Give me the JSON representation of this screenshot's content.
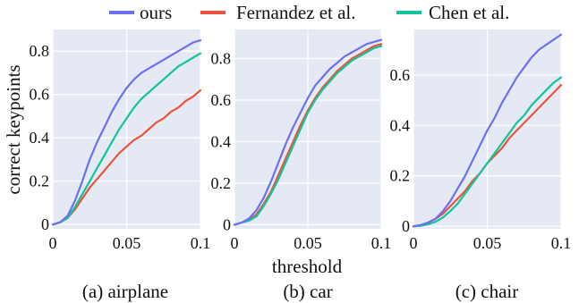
{
  "figure": {
    "ylabel": "correct keypoints",
    "xlabel": "threshold"
  },
  "legend": [
    {
      "name": "ours",
      "color": "#6b6ff0"
    },
    {
      "name": "Fernandez et al.",
      "color": "#e8553a"
    },
    {
      "name": "Chen et al.",
      "color": "#12c49a"
    }
  ],
  "chart_data": [
    {
      "type": "line",
      "title": "(a) airplane",
      "xlim": [
        0,
        0.1
      ],
      "ylim": [
        -0.02,
        0.9
      ],
      "xticks": [
        0,
        0.05,
        0.1
      ],
      "xtick_labels": [
        "0",
        "0.05",
        "0.1"
      ],
      "yticks": [
        0,
        0.2,
        0.4,
        0.6,
        0.8
      ],
      "ytick_labels": [
        "0",
        "0.2",
        "0.4",
        "0.6",
        "0.8"
      ],
      "grid": true,
      "x": [
        0,
        0.005,
        0.01,
        0.015,
        0.02,
        0.025,
        0.03,
        0.035,
        0.04,
        0.045,
        0.05,
        0.055,
        0.06,
        0.065,
        0.07,
        0.075,
        0.08,
        0.085,
        0.09,
        0.095,
        0.1
      ],
      "series": [
        {
          "name": "ours",
          "values": [
            0,
            0.01,
            0.04,
            0.11,
            0.2,
            0.3,
            0.38,
            0.45,
            0.52,
            0.58,
            0.63,
            0.67,
            0.7,
            0.72,
            0.74,
            0.76,
            0.78,
            0.8,
            0.82,
            0.84,
            0.85
          ]
        },
        {
          "name": "Fernandez et al.",
          "values": [
            0,
            0.01,
            0.03,
            0.07,
            0.12,
            0.17,
            0.21,
            0.25,
            0.29,
            0.33,
            0.36,
            0.39,
            0.41,
            0.44,
            0.47,
            0.49,
            0.52,
            0.54,
            0.57,
            0.59,
            0.62
          ]
        },
        {
          "name": "Chen et al.",
          "values": [
            0,
            0.01,
            0.03,
            0.08,
            0.14,
            0.2,
            0.26,
            0.32,
            0.38,
            0.44,
            0.49,
            0.54,
            0.58,
            0.61,
            0.64,
            0.67,
            0.7,
            0.73,
            0.75,
            0.77,
            0.79
          ]
        }
      ]
    },
    {
      "type": "line",
      "title": "(b) car",
      "xlim": [
        0,
        0.1
      ],
      "ylim": [
        -0.02,
        0.94
      ],
      "xticks": [
        0,
        0.05,
        0.1
      ],
      "xtick_labels": [
        "0",
        "0.05",
        "0.1"
      ],
      "yticks": [
        0,
        0.2,
        0.4,
        0.6,
        0.8
      ],
      "ytick_labels": [
        "0",
        "0.2",
        "0.4",
        "0.6",
        "0.8"
      ],
      "grid": true,
      "x": [
        0,
        0.005,
        0.01,
        0.015,
        0.02,
        0.025,
        0.03,
        0.035,
        0.04,
        0.045,
        0.05,
        0.055,
        0.06,
        0.065,
        0.07,
        0.075,
        0.08,
        0.085,
        0.09,
        0.095,
        0.1
      ],
      "series": [
        {
          "name": "ours",
          "values": [
            0,
            0.01,
            0.03,
            0.07,
            0.13,
            0.21,
            0.3,
            0.39,
            0.47,
            0.54,
            0.61,
            0.67,
            0.71,
            0.75,
            0.78,
            0.81,
            0.83,
            0.85,
            0.87,
            0.88,
            0.89
          ]
        },
        {
          "name": "Fernandez et al.",
          "values": [
            0,
            0.01,
            0.02,
            0.05,
            0.1,
            0.16,
            0.24,
            0.32,
            0.4,
            0.48,
            0.55,
            0.61,
            0.66,
            0.7,
            0.74,
            0.77,
            0.8,
            0.82,
            0.84,
            0.86,
            0.87
          ]
        },
        {
          "name": "Chen et al.",
          "values": [
            0,
            0.01,
            0.02,
            0.04,
            0.09,
            0.15,
            0.22,
            0.3,
            0.38,
            0.46,
            0.54,
            0.6,
            0.65,
            0.69,
            0.73,
            0.76,
            0.79,
            0.81,
            0.83,
            0.85,
            0.86
          ]
        }
      ]
    },
    {
      "type": "line",
      "title": "(c) chair",
      "xlim": [
        0,
        0.1
      ],
      "ylim": [
        -0.01,
        0.78
      ],
      "xticks": [
        0,
        0.05,
        0.1
      ],
      "xtick_labels": [
        "0",
        "0.05",
        "0.1"
      ],
      "yticks": [
        0,
        0.2,
        0.4,
        0.6
      ],
      "ytick_labels": [
        "0",
        "0.2",
        "0.4",
        "0.6"
      ],
      "grid": true,
      "x": [
        0,
        0.005,
        0.01,
        0.015,
        0.02,
        0.025,
        0.03,
        0.035,
        0.04,
        0.045,
        0.05,
        0.055,
        0.06,
        0.065,
        0.07,
        0.075,
        0.08,
        0.085,
        0.09,
        0.095,
        0.1
      ],
      "series": [
        {
          "name": "ours",
          "values": [
            0,
            0.005,
            0.015,
            0.03,
            0.06,
            0.1,
            0.15,
            0.2,
            0.26,
            0.32,
            0.38,
            0.43,
            0.49,
            0.54,
            0.59,
            0.63,
            0.67,
            0.7,
            0.72,
            0.74,
            0.76
          ]
        },
        {
          "name": "Fernandez et al.",
          "values": [
            0,
            0.005,
            0.015,
            0.03,
            0.05,
            0.08,
            0.11,
            0.14,
            0.18,
            0.21,
            0.25,
            0.28,
            0.31,
            0.35,
            0.38,
            0.41,
            0.44,
            0.47,
            0.5,
            0.53,
            0.56
          ]
        },
        {
          "name": "Chen et al.",
          "values": [
            0,
            0.002,
            0.008,
            0.018,
            0.035,
            0.06,
            0.09,
            0.13,
            0.17,
            0.21,
            0.25,
            0.29,
            0.33,
            0.37,
            0.41,
            0.44,
            0.48,
            0.51,
            0.54,
            0.57,
            0.59
          ]
        }
      ]
    }
  ]
}
